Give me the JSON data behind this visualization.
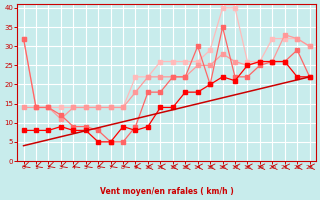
{
  "xlabel": "Vent moyen/en rafales ( km/h )",
  "bg_color": "#c8ecec",
  "grid_color": "#ffffff",
  "xlim": [
    -0.5,
    23.5
  ],
  "ylim": [
    0,
    41
  ],
  "yticks": [
    0,
    5,
    10,
    15,
    20,
    25,
    30,
    35,
    40
  ],
  "xticks": [
    0,
    1,
    2,
    3,
    4,
    5,
    6,
    7,
    8,
    9,
    10,
    11,
    12,
    13,
    14,
    15,
    16,
    17,
    18,
    19,
    20,
    21,
    22,
    23
  ],
  "line1_color": "#ff0000",
  "line2_color": "#ff6666",
  "line3_color": "#ff9999",
  "line4_color": "#ffbbbb",
  "line5_color": "#cc0000",
  "line1_x": [
    0,
    1,
    2,
    3,
    4,
    5,
    6,
    7,
    8,
    9,
    10,
    11,
    12,
    13,
    14,
    15,
    16,
    17,
    18,
    19,
    20,
    21,
    22,
    23
  ],
  "line1_y": [
    8,
    8,
    8,
    9,
    8,
    8,
    5,
    5,
    9,
    8,
    9,
    14,
    14,
    18,
    18,
    20,
    22,
    21,
    25,
    26,
    26,
    26,
    22,
    22
  ],
  "line2_x": [
    0,
    1,
    2,
    3,
    4,
    5,
    6,
    7,
    8,
    9,
    10,
    11,
    12,
    13,
    14,
    15,
    16,
    17,
    18,
    19,
    20,
    21,
    22,
    23
  ],
  "line2_y": [
    32,
    14,
    14,
    12,
    9,
    9,
    8,
    5,
    5,
    9,
    18,
    18,
    22,
    22,
    30,
    20,
    35,
    22,
    22,
    25,
    26,
    26,
    29,
    22
  ],
  "line3_x": [
    0,
    1,
    2,
    3,
    4,
    5,
    6,
    7,
    8,
    9,
    10,
    11,
    12,
    13,
    14,
    15,
    16,
    17,
    18,
    19,
    20,
    21,
    22,
    23
  ],
  "line3_y": [
    14,
    14,
    14,
    11,
    14,
    14,
    14,
    14,
    14,
    18,
    22,
    22,
    22,
    22,
    25,
    25,
    28,
    26,
    25,
    26,
    26,
    33,
    32,
    30
  ],
  "line4_x": [
    0,
    1,
    2,
    3,
    4,
    5,
    6,
    7,
    8,
    9,
    10,
    11,
    12,
    13,
    14,
    15,
    16,
    17,
    18,
    19,
    20,
    21,
    22,
    23
  ],
  "line4_y": [
    32,
    14,
    14,
    14,
    14,
    14,
    14,
    14,
    14,
    22,
    22,
    26,
    26,
    26,
    26,
    29,
    40,
    40,
    26,
    26,
    32,
    32,
    32,
    30
  ],
  "line5_x": [
    0,
    23
  ],
  "line5_y": [
    4,
    22
  ],
  "arrow_angles": [
    225,
    225,
    225,
    225,
    225,
    225,
    225,
    225,
    225,
    200,
    180,
    180,
    180,
    180,
    180,
    180,
    180,
    180,
    180,
    180,
    180,
    180,
    180,
    180
  ]
}
